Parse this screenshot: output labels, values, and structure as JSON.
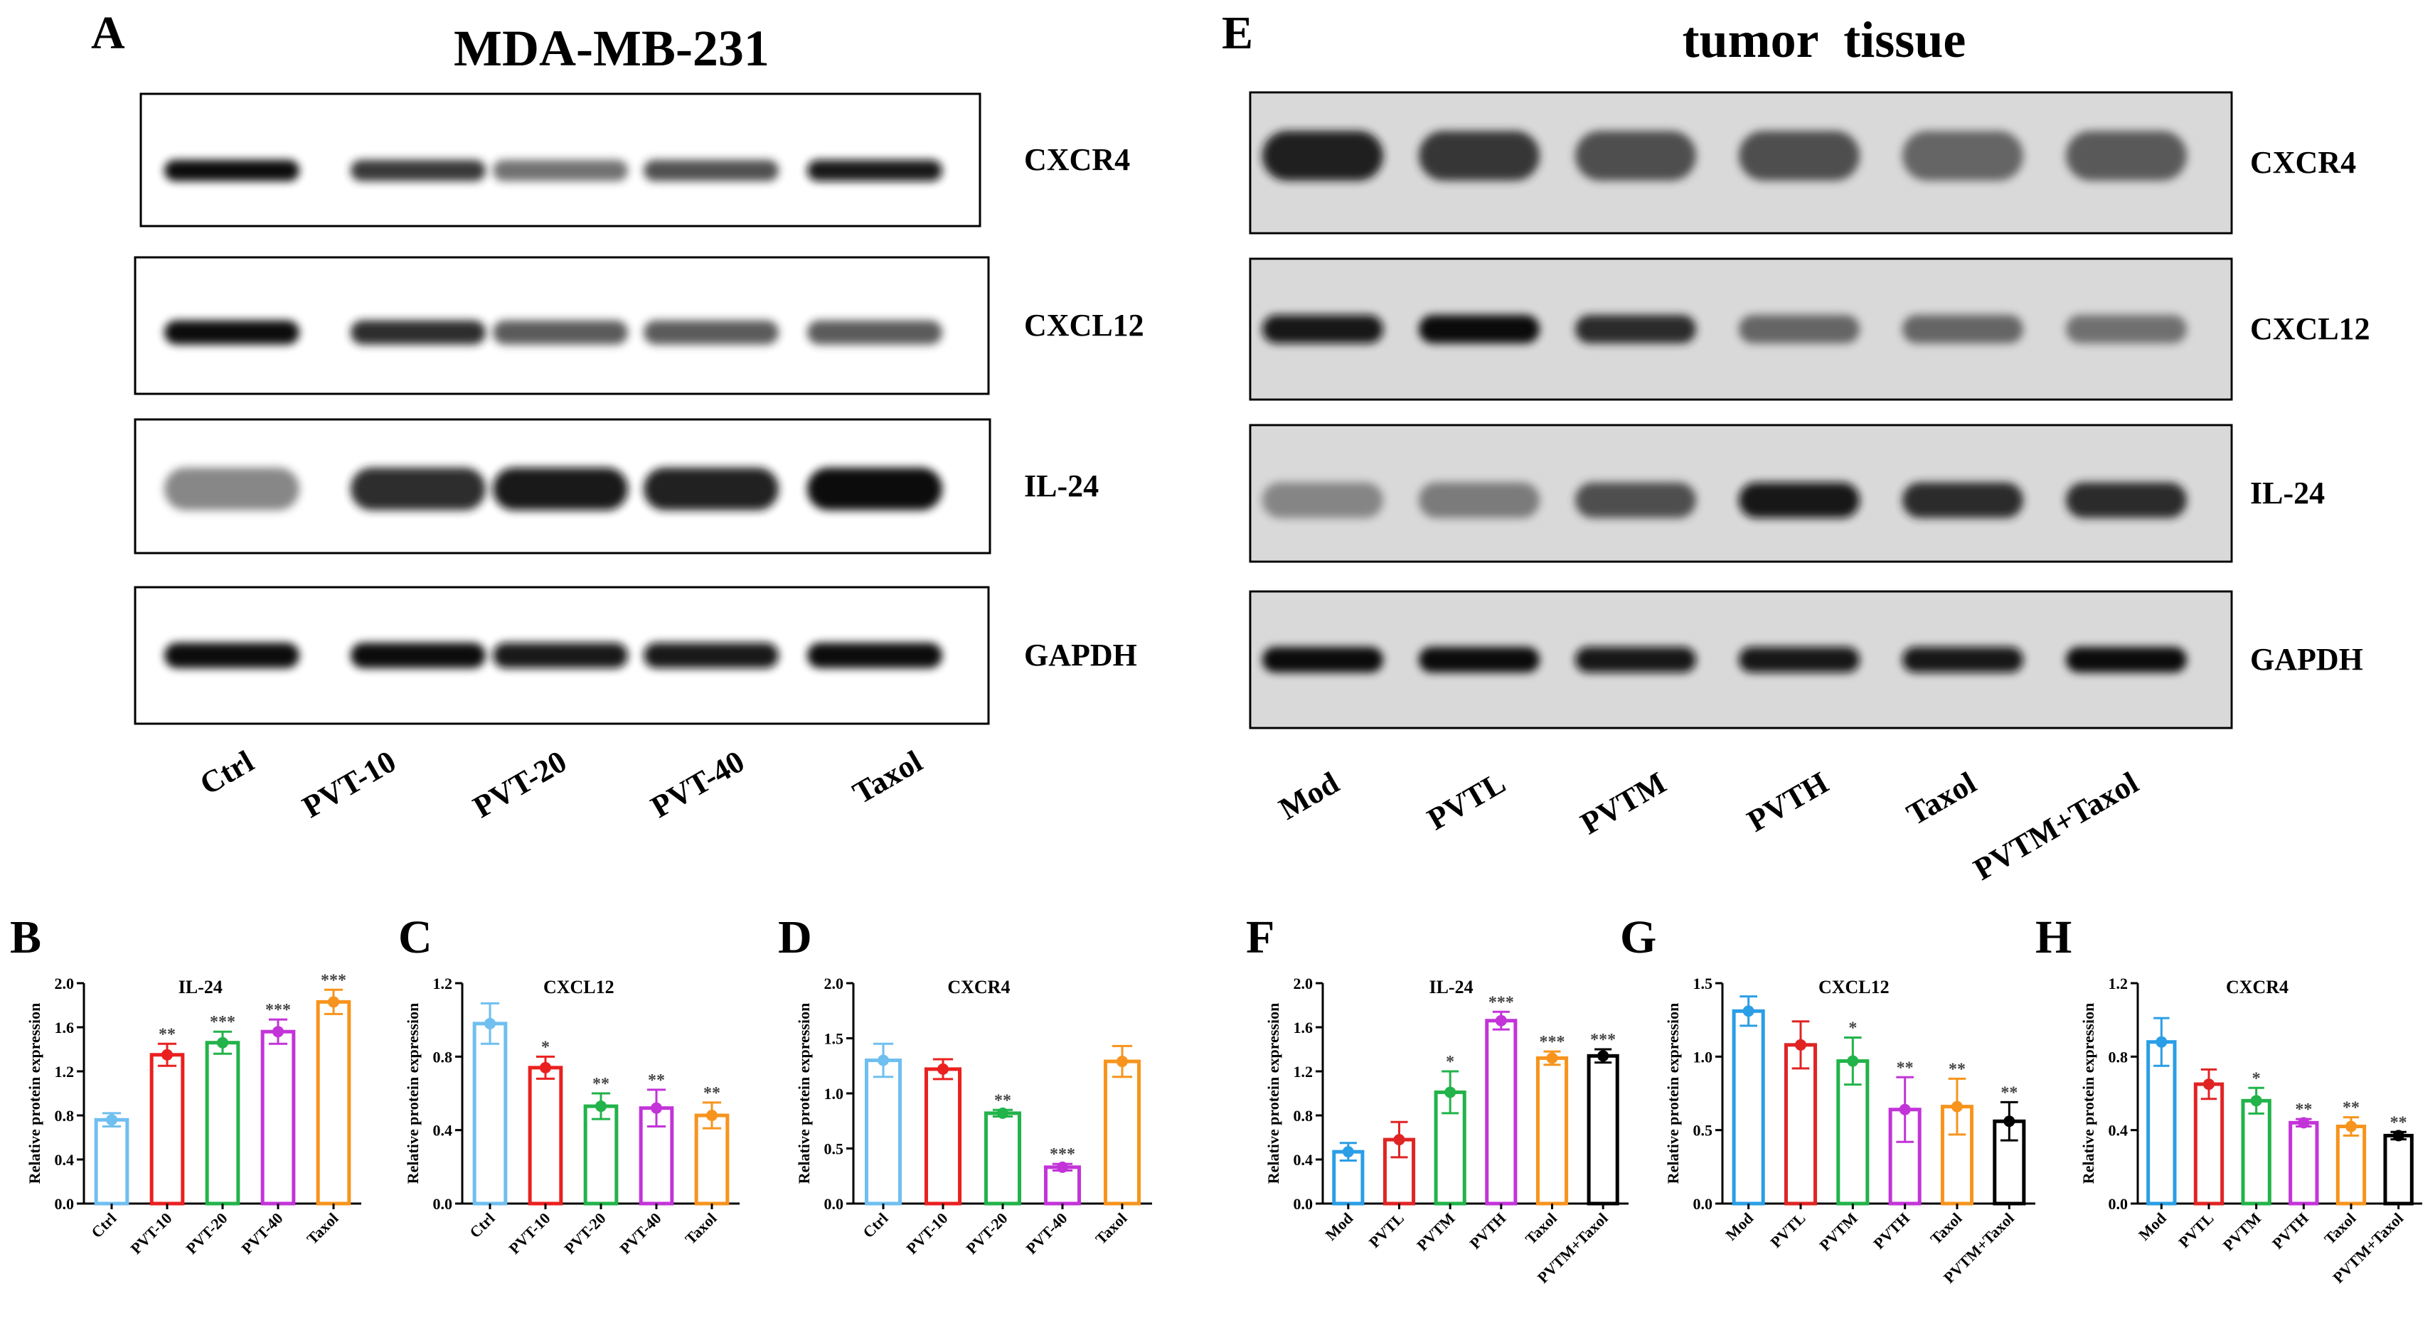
{
  "letters": {
    "A": "A",
    "B": "B",
    "C": "C",
    "D": "D",
    "E": "E",
    "F": "F",
    "G": "G",
    "H": "H"
  },
  "blot_left": {
    "title": "MDA-MB-231",
    "proteins": [
      "CXCR4",
      "CXCL12",
      "IL-24",
      "GAPDH"
    ],
    "lanes": [
      "Ctrl",
      "PVT-10",
      "PVT-20",
      "PVT-40",
      "Taxol"
    ],
    "band_intensity": {
      "CXCR4": [
        1.0,
        0.8,
        0.55,
        0.7,
        0.95
      ],
      "CXCL12": [
        1.0,
        0.85,
        0.65,
        0.65,
        0.65
      ],
      "IL-24": [
        0.45,
        0.85,
        0.95,
        0.9,
        1.0
      ],
      "GAPDH": [
        1.0,
        1.0,
        0.95,
        0.95,
        1.0
      ]
    }
  },
  "blot_right": {
    "title": "tumor  tissue",
    "proteins": [
      "CXCR4",
      "CXCL12",
      "IL-24",
      "GAPDH"
    ],
    "lanes": [
      "Mod",
      "PVTL",
      "PVTM",
      "PVTH",
      "Taxol",
      "PVTM+Taxol"
    ],
    "band_intensity": {
      "CXCR4": [
        0.9,
        0.8,
        0.7,
        0.7,
        0.6,
        0.65
      ],
      "CXCL12": [
        0.95,
        1.0,
        0.85,
        0.6,
        0.6,
        0.55
      ],
      "IL-24": [
        0.45,
        0.5,
        0.7,
        0.95,
        0.85,
        0.85
      ],
      "GAPDH": [
        1.0,
        1.0,
        0.95,
        0.95,
        0.95,
        1.0
      ]
    }
  },
  "colors": {
    "left_groups": [
      "#6fbff0",
      "#ea2020",
      "#22b34a",
      "#c234d8",
      "#f7941d"
    ],
    "right_groups": [
      "#2a9ee6",
      "#e02424",
      "#22b34a",
      "#c234d8",
      "#f7941d",
      "#000000"
    ]
  },
  "chart_data": [
    {
      "panel": "B",
      "type": "bar",
      "title": "IL-24",
      "ylabel": "Relative protein expression",
      "categories": [
        "Ctrl",
        "PVT-10",
        "PVT-20",
        "PVT-40",
        "Taxol"
      ],
      "values": [
        0.76,
        1.35,
        1.46,
        1.56,
        1.83
      ],
      "errors": [
        0.06,
        0.1,
        0.1,
        0.11,
        0.11
      ],
      "sig": [
        "",
        "**",
        "***",
        "***",
        "***"
      ],
      "ylim": [
        0,
        2.0
      ],
      "yticks": [
        "0.0",
        "0.4",
        "0.8",
        "1.2",
        "1.6",
        "2.0"
      ],
      "color_set": "left_groups"
    },
    {
      "panel": "C",
      "type": "bar",
      "title": "CXCL12",
      "ylabel": "Relative protein expression",
      "categories": [
        "Ctrl",
        "PVT-10",
        "PVT-20",
        "PVT-40",
        "Taxol"
      ],
      "values": [
        0.98,
        0.74,
        0.53,
        0.52,
        0.48
      ],
      "errors": [
        0.11,
        0.06,
        0.07,
        0.1,
        0.07
      ],
      "sig": [
        "",
        "*",
        "**",
        "**",
        "**"
      ],
      "ylim": [
        0,
        1.2
      ],
      "yticks": [
        "0.0",
        "0.4",
        "0.8",
        "1.2"
      ],
      "color_set": "left_groups"
    },
    {
      "panel": "D",
      "type": "bar",
      "title": "CXCR4",
      "ylabel": "Relative protein expression",
      "categories": [
        "Ctrl",
        "PVT-10",
        "PVT-20",
        "PVT-40",
        "Taxol"
      ],
      "values": [
        1.3,
        1.22,
        0.82,
        0.33,
        1.29
      ],
      "errors": [
        0.15,
        0.09,
        0.03,
        0.03,
        0.14
      ],
      "sig": [
        "",
        "",
        "**",
        "***",
        ""
      ],
      "ylim": [
        0,
        2.0
      ],
      "yticks": [
        "0.0",
        "0.5",
        "1.0",
        "1.5",
        "2.0"
      ],
      "color_set": "left_groups"
    },
    {
      "panel": "F",
      "type": "bar",
      "title": "IL-24",
      "ylabel": "Relative protein expression",
      "categories": [
        "Mod",
        "PVTL",
        "PVTM",
        "PVTH",
        "Taxol",
        "PVTM+Taxol"
      ],
      "values": [
        0.47,
        0.58,
        1.01,
        1.66,
        1.32,
        1.34
      ],
      "errors": [
        0.08,
        0.16,
        0.19,
        0.08,
        0.06,
        0.06
      ],
      "sig": [
        "",
        "",
        "*",
        "***",
        "***",
        "***"
      ],
      "ylim": [
        0,
        2.0
      ],
      "yticks": [
        "0.0",
        "0.4",
        "0.8",
        "1.2",
        "1.6",
        "2.0"
      ],
      "color_set": "right_groups"
    },
    {
      "panel": "G",
      "type": "bar",
      "title": "CXCL12",
      "ylabel": "Relative protein expression",
      "categories": [
        "Mod",
        "PVTL",
        "PVTM",
        "PVTH",
        "Taxol",
        "PVTM+Taxol"
      ],
      "values": [
        1.31,
        1.08,
        0.97,
        0.64,
        0.66,
        0.56
      ],
      "errors": [
        0.1,
        0.16,
        0.16,
        0.22,
        0.19,
        0.13
      ],
      "sig": [
        "",
        "",
        "*",
        "**",
        "**",
        "**"
      ],
      "ylim": [
        0,
        1.5
      ],
      "yticks": [
        "0.0",
        "0.5",
        "1.0",
        "1.5"
      ],
      "color_set": "right_groups"
    },
    {
      "panel": "H",
      "type": "bar",
      "title": "CXCR4",
      "ylabel": "Relative protein expression",
      "categories": [
        "Mod",
        "PVTL",
        "PVTM",
        "PVTH",
        "Taxol",
        "PVTM+Taxol"
      ],
      "values": [
        0.88,
        0.65,
        0.56,
        0.44,
        0.42,
        0.37
      ],
      "errors": [
        0.13,
        0.08,
        0.07,
        0.02,
        0.05,
        0.02
      ],
      "sig": [
        "",
        "",
        "*",
        "**",
        "**",
        "**"
      ],
      "ylim": [
        0,
        1.2
      ],
      "yticks": [
        "0.0",
        "0.4",
        "0.8",
        "1.2"
      ],
      "color_set": "right_groups"
    }
  ]
}
